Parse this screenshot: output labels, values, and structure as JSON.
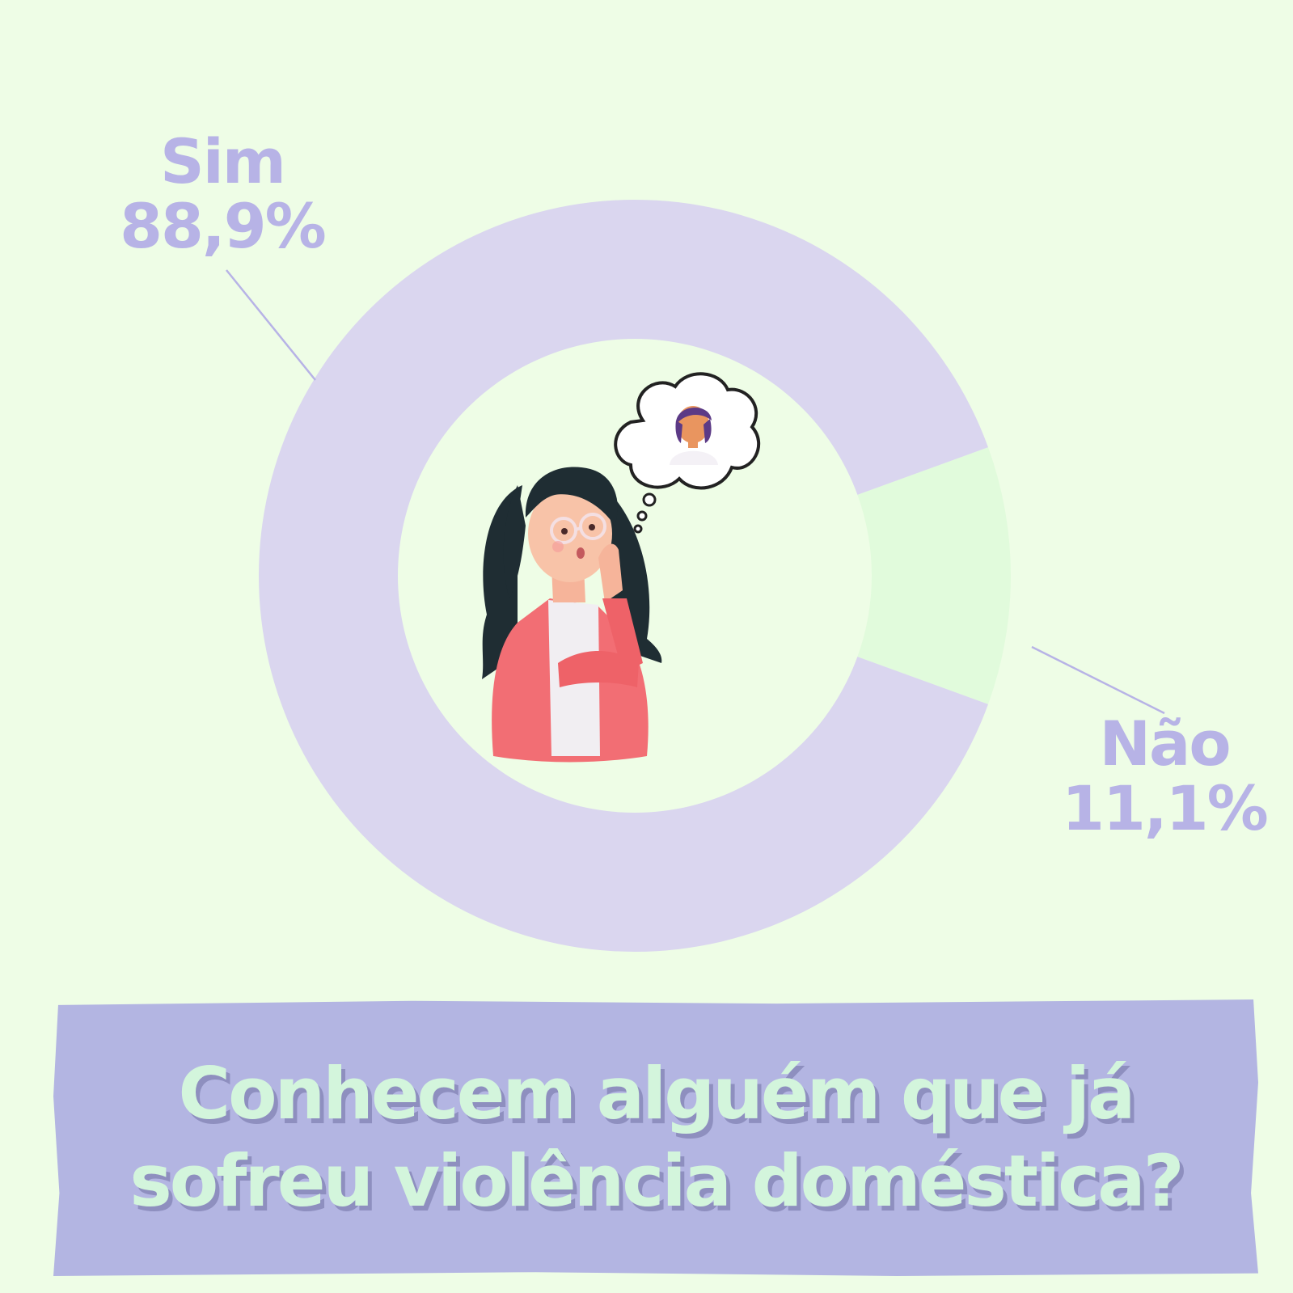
{
  "chart_data": {
    "type": "pie",
    "style": "donut",
    "title": "Conhecem alguém que já sofreu violência doméstica?",
    "slices": [
      {
        "label": "Sim",
        "value": 88.9,
        "value_label": "88,9%",
        "color": "#dad6ef"
      },
      {
        "label": "Não",
        "value": 11.1,
        "value_label": "11,1%",
        "color": "#e1fbdc"
      }
    ],
    "label_color": "#b7b3e6",
    "legend": "none"
  },
  "colors": {
    "background": "#eefde6",
    "banner": "#b3b5e2",
    "title_text": "#d3f5dc",
    "title_shadow": "#8e8fbf",
    "leader_line": "#b7b3e6"
  },
  "illustration": {
    "subject": "woman-thinking-icon",
    "thought": "thought-bubble-icon"
  }
}
